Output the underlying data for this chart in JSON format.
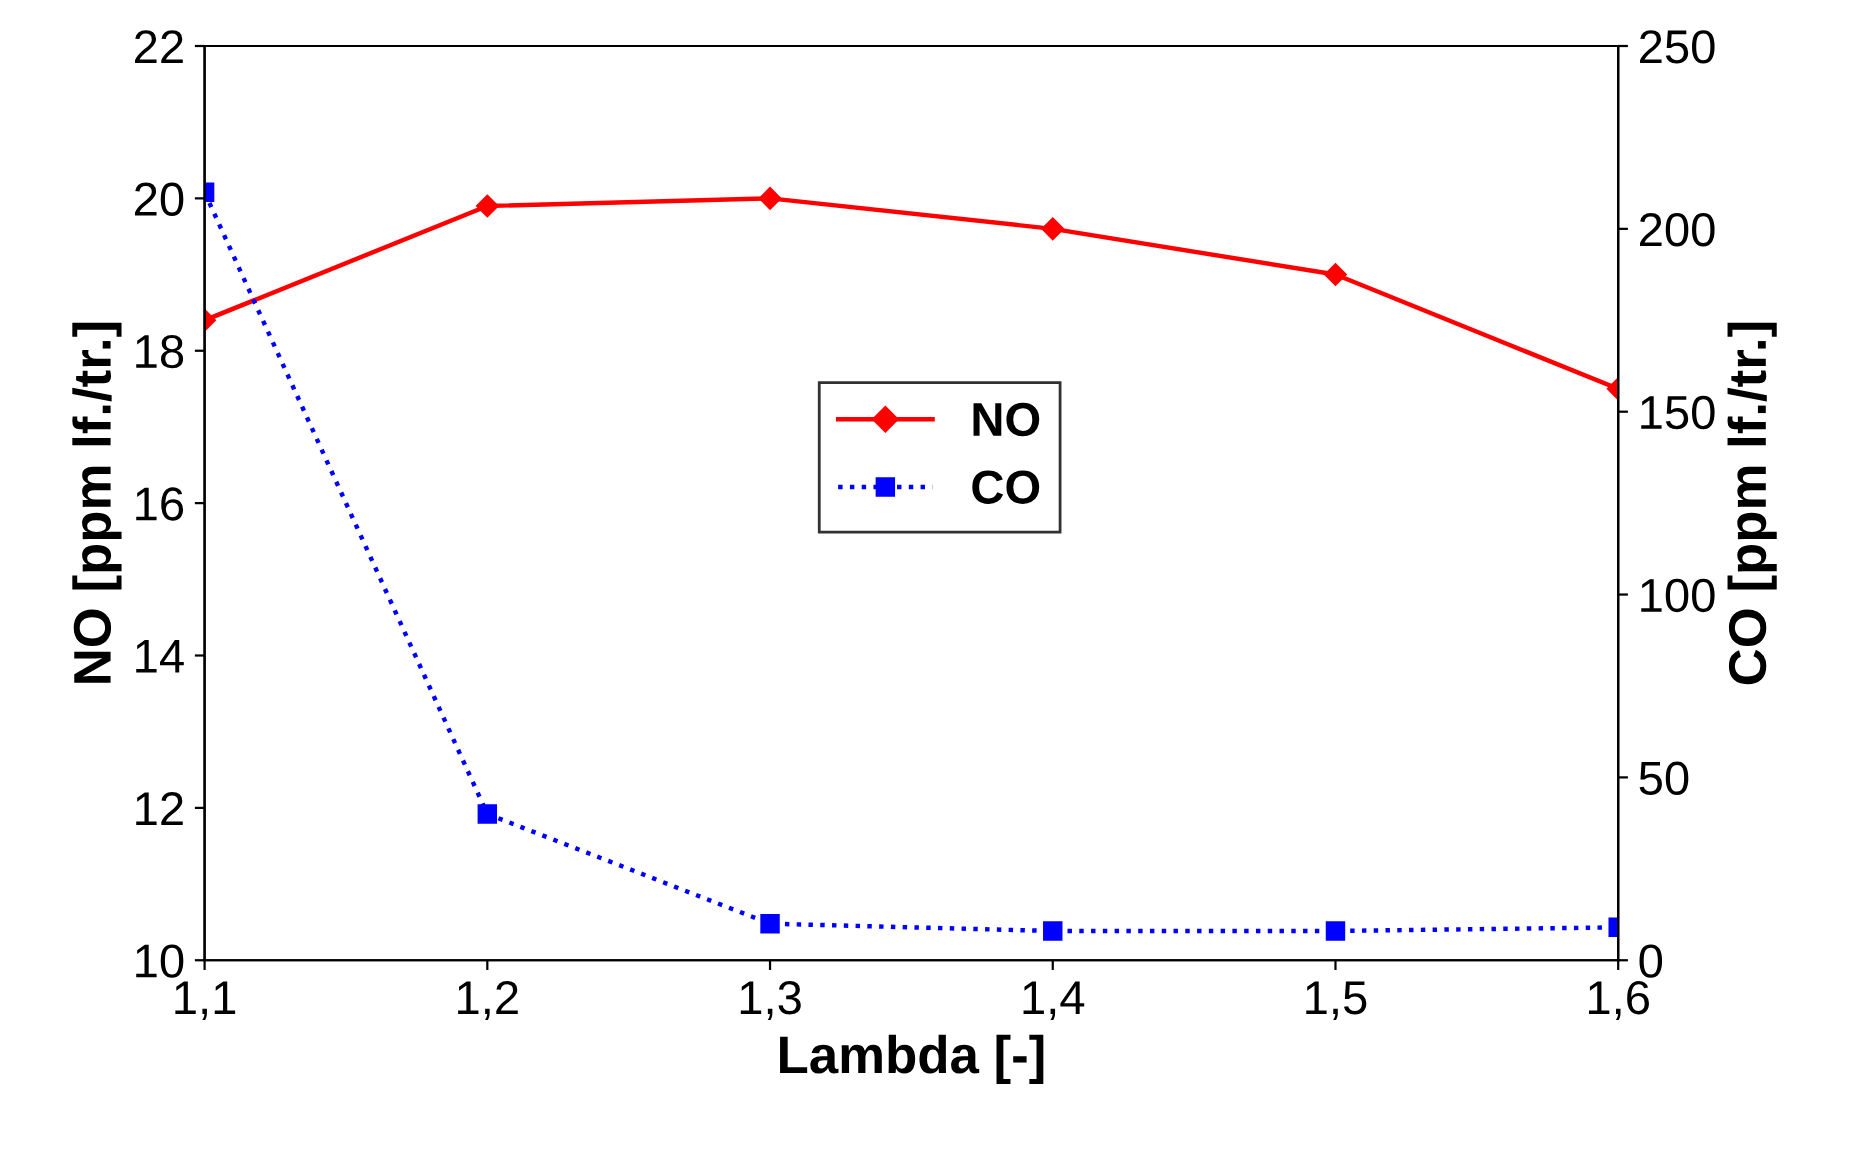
{
  "chart_data": {
    "type": "line",
    "xlabel": "Lambda [-]",
    "ylabel": "NO [ppm lf./tr.]",
    "y2label": "CO [ppm lf./tr.]",
    "x": [
      1.1,
      1.2,
      1.3,
      1.4,
      1.5,
      1.6
    ],
    "series": [
      {
        "name": "NO",
        "color": "#ff0000",
        "values": [
          18.4,
          19.9,
          20.0,
          19.6,
          19.0,
          17.5
        ],
        "marker": "diamond",
        "line_style": "solid"
      },
      {
        "name": "CO",
        "color": "#0000ff",
        "values": [
          210,
          40,
          10,
          8,
          8,
          9
        ],
        "axis": "y2",
        "marker": "square",
        "line_style": "dotted"
      }
    ],
    "xlim": [
      1.1,
      1.6
    ],
    "xticks": [
      {
        "value": 1.1,
        "label": "1,1"
      },
      {
        "value": 1.2,
        "label": "1,2"
      },
      {
        "value": 1.3,
        "label": "1,3"
      },
      {
        "value": 1.4,
        "label": "1,4"
      },
      {
        "value": 1.5,
        "label": "1,5"
      },
      {
        "value": 1.6,
        "label": "1,6"
      }
    ],
    "ylim": [
      10,
      22
    ],
    "yticks": [
      10,
      12,
      14,
      16,
      18,
      20,
      22
    ],
    "y2lim": [
      0,
      250
    ],
    "y2ticks": [
      0,
      50,
      100,
      150,
      200,
      250
    ],
    "grid": false,
    "legend": "center"
  }
}
